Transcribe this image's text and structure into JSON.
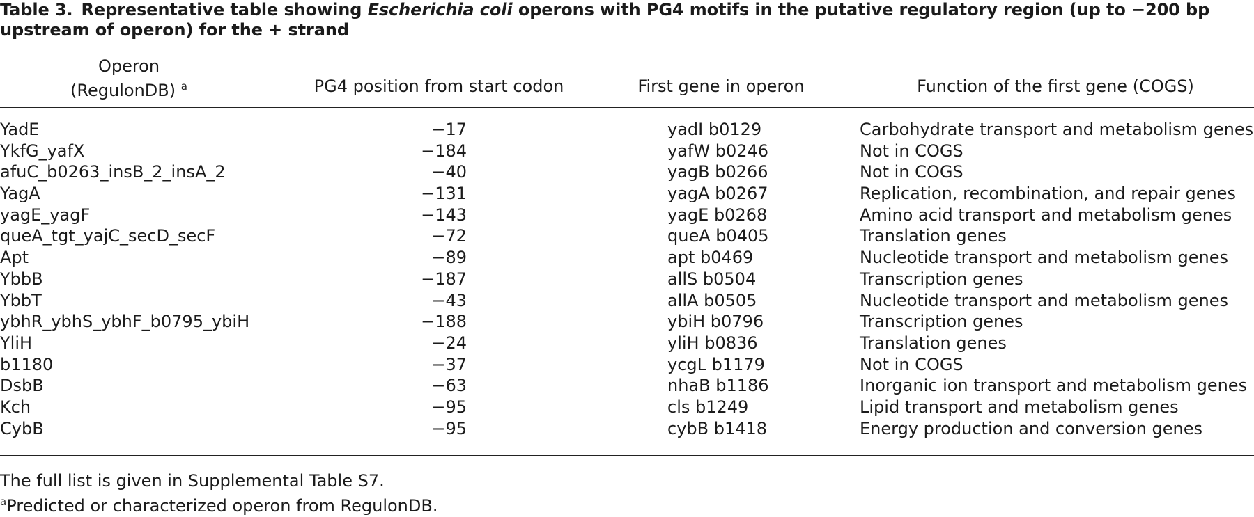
{
  "caption": {
    "label": "Table 3.",
    "text_before": "Representative table showing ",
    "species": "Escherichia coli",
    "text_after": " operons with PG4 motifs in the putative regulatory region (up to  −200 bp upstream of operon) for the + strand"
  },
  "headers": {
    "operon_line1": "Operon",
    "operon_line2": "(RegulonDB)",
    "operon_sup": "a",
    "position": "PG4 position from start codon",
    "first_gene": "First gene in operon",
    "function": "Function of the first gene (COGS)"
  },
  "rows": [
    {
      "operon": "YadE",
      "position": "−17",
      "gene": "yadI b0129",
      "function": "Carbohydrate transport and metabolism genes"
    },
    {
      "operon": "YkfG_yafX",
      "position": "−184",
      "gene": "yafW b0246",
      "function": "Not in COGS"
    },
    {
      "operon": "afuC_b0263_insB_2_insA_2",
      "position": "−40",
      "gene": "yagB b0266",
      "function": "Not in COGS"
    },
    {
      "operon": "YagA",
      "position": "−131",
      "gene": "yagA b0267",
      "function": "Replication, recombination, and repair genes"
    },
    {
      "operon": "yagE_yagF",
      "position": "−143",
      "gene": "yagE b0268",
      "function": "Amino acid transport and metabolism genes"
    },
    {
      "operon": "queA_tgt_yajC_secD_secF",
      "position": "−72",
      "gene": "queA b0405",
      "function": "Translation genes"
    },
    {
      "operon": "Apt",
      "position": "−89",
      "gene": "apt b0469",
      "function": "Nucleotide transport and metabolism genes"
    },
    {
      "operon": "YbbB",
      "position": "−187",
      "gene": "allS b0504",
      "function": "Transcription genes"
    },
    {
      "operon": "YbbT",
      "position": "−43",
      "gene": "allA b0505",
      "function": "Nucleotide transport and metabolism genes"
    },
    {
      "operon": "ybhR_ybhS_ybhF_b0795_ybiH",
      "position": "−188",
      "gene": "ybiH b0796",
      "function": "Transcription genes"
    },
    {
      "operon": "YliH",
      "position": "−24",
      "gene": "yliH b0836",
      "function": "Translation genes"
    },
    {
      "operon": "b1180",
      "position": "−37",
      "gene": "ycgL b1179",
      "function": "Not in COGS"
    },
    {
      "operon": "DsbB",
      "position": "−63",
      "gene": "nhaB b1186",
      "function": "Inorganic ion transport and metabolism genes"
    },
    {
      "operon": "Kch",
      "position": "−95",
      "gene": "cls b1249",
      "function": "Lipid transport and metabolism genes"
    },
    {
      "operon": "CybB",
      "position": "−95",
      "gene": "cybB b1418",
      "function": "Energy production and conversion genes"
    }
  ],
  "footnotes": {
    "note": "The full list is given in Supplemental Table S7.",
    "sup": "a",
    "a": "Predicted or characterized operon from RegulonDB."
  }
}
